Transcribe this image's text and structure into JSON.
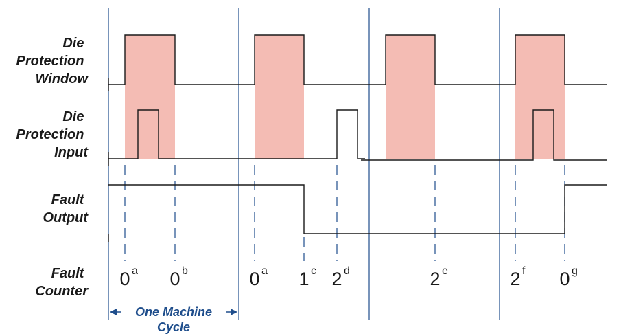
{
  "signals": [
    {
      "id": "window",
      "label_lines": [
        "Die",
        "Protection",
        "Window"
      ]
    },
    {
      "id": "input",
      "label_lines": [
        "Die",
        "Protection",
        "Input"
      ]
    },
    {
      "id": "fault_output",
      "label_lines": [
        "Fault",
        "Output"
      ]
    },
    {
      "id": "fault_counter",
      "label_lines": [
        "Fault",
        "Counter"
      ]
    }
  ],
  "counter_values": [
    {
      "value": "0",
      "sup": "a"
    },
    {
      "value": "0",
      "sup": "b"
    },
    {
      "value": "0",
      "sup": "a"
    },
    {
      "value": "1",
      "sup": "c"
    },
    {
      "value": "2",
      "sup": "d"
    },
    {
      "value": "2",
      "sup": "e"
    },
    {
      "value": "2",
      "sup": "f"
    },
    {
      "value": "0",
      "sup": "g"
    }
  ],
  "cycle_label_lines": [
    "One Machine",
    "Cycle"
  ],
  "colors": {
    "window_fill": "#f4bcb4",
    "cycle_line": "#1f4e8c",
    "dashed": "#1f4e8c",
    "signal_line": "#1a1a1a",
    "label_text": "#1a1a1a"
  }
}
